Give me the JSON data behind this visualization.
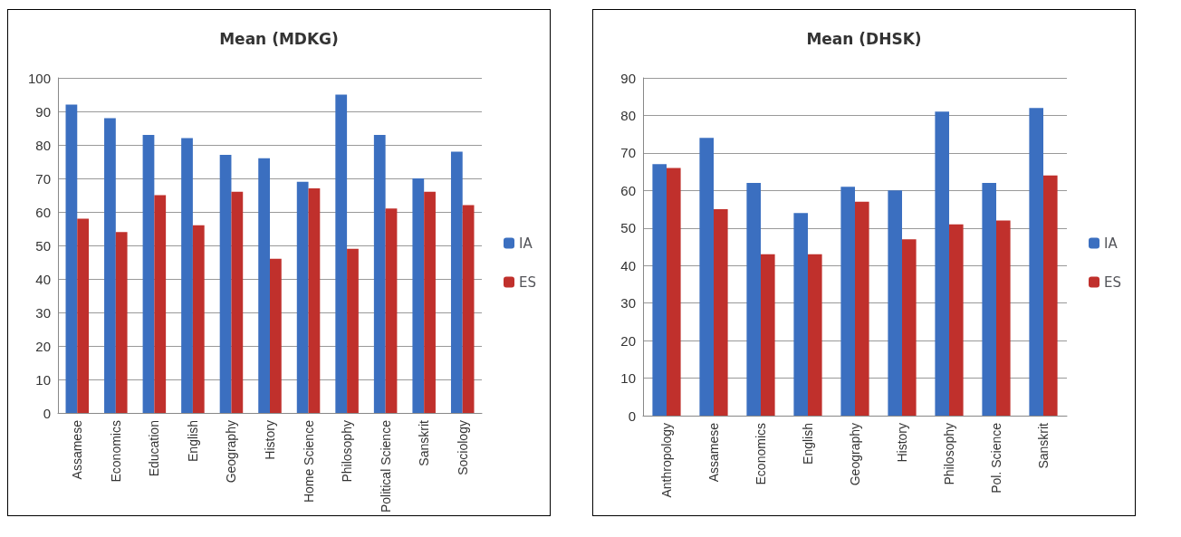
{
  "chart_data": [
    {
      "type": "bar",
      "title": "Mean (MDKG)",
      "categories": [
        "Assamese",
        "Economics",
        "Education",
        "English",
        "Geography",
        "History",
        "Home Science",
        "Philosophy",
        "Political Science",
        "Sanskrit",
        "Sociology"
      ],
      "series": [
        {
          "name": "IA",
          "color": "#3b6fc0",
          "values": [
            92,
            88,
            83,
            82,
            77,
            76,
            69,
            95,
            83,
            70,
            78
          ]
        },
        {
          "name": "ES",
          "color": "#c0302c",
          "values": [
            58,
            54,
            65,
            56,
            66,
            46,
            67,
            49,
            61,
            66,
            62
          ]
        }
      ],
      "ylim": [
        0,
        100
      ],
      "yticks": [
        0,
        10,
        20,
        30,
        40,
        50,
        60,
        70,
        80,
        90,
        100
      ],
      "grid": "y",
      "legend": "right"
    },
    {
      "type": "bar",
      "title": "Mean (DHSK)",
      "categories": [
        "Anthropology",
        "Assamese",
        "Economics",
        "English",
        "Geography",
        "History",
        "Philosophy",
        "Pol. Science",
        "Sanskrit"
      ],
      "series": [
        {
          "name": "IA",
          "color": "#3b6fc0",
          "values": [
            67,
            74,
            62,
            54,
            61,
            60,
            81,
            62,
            82
          ]
        },
        {
          "name": "ES",
          "color": "#c0302c",
          "values": [
            66,
            55,
            43,
            43,
            57,
            47,
            51,
            52,
            64
          ]
        }
      ],
      "ylim": [
        0,
        90
      ],
      "yticks": [
        0,
        10,
        20,
        30,
        40,
        50,
        60,
        70,
        80,
        90
      ],
      "grid": "y",
      "legend": "right"
    }
  ]
}
